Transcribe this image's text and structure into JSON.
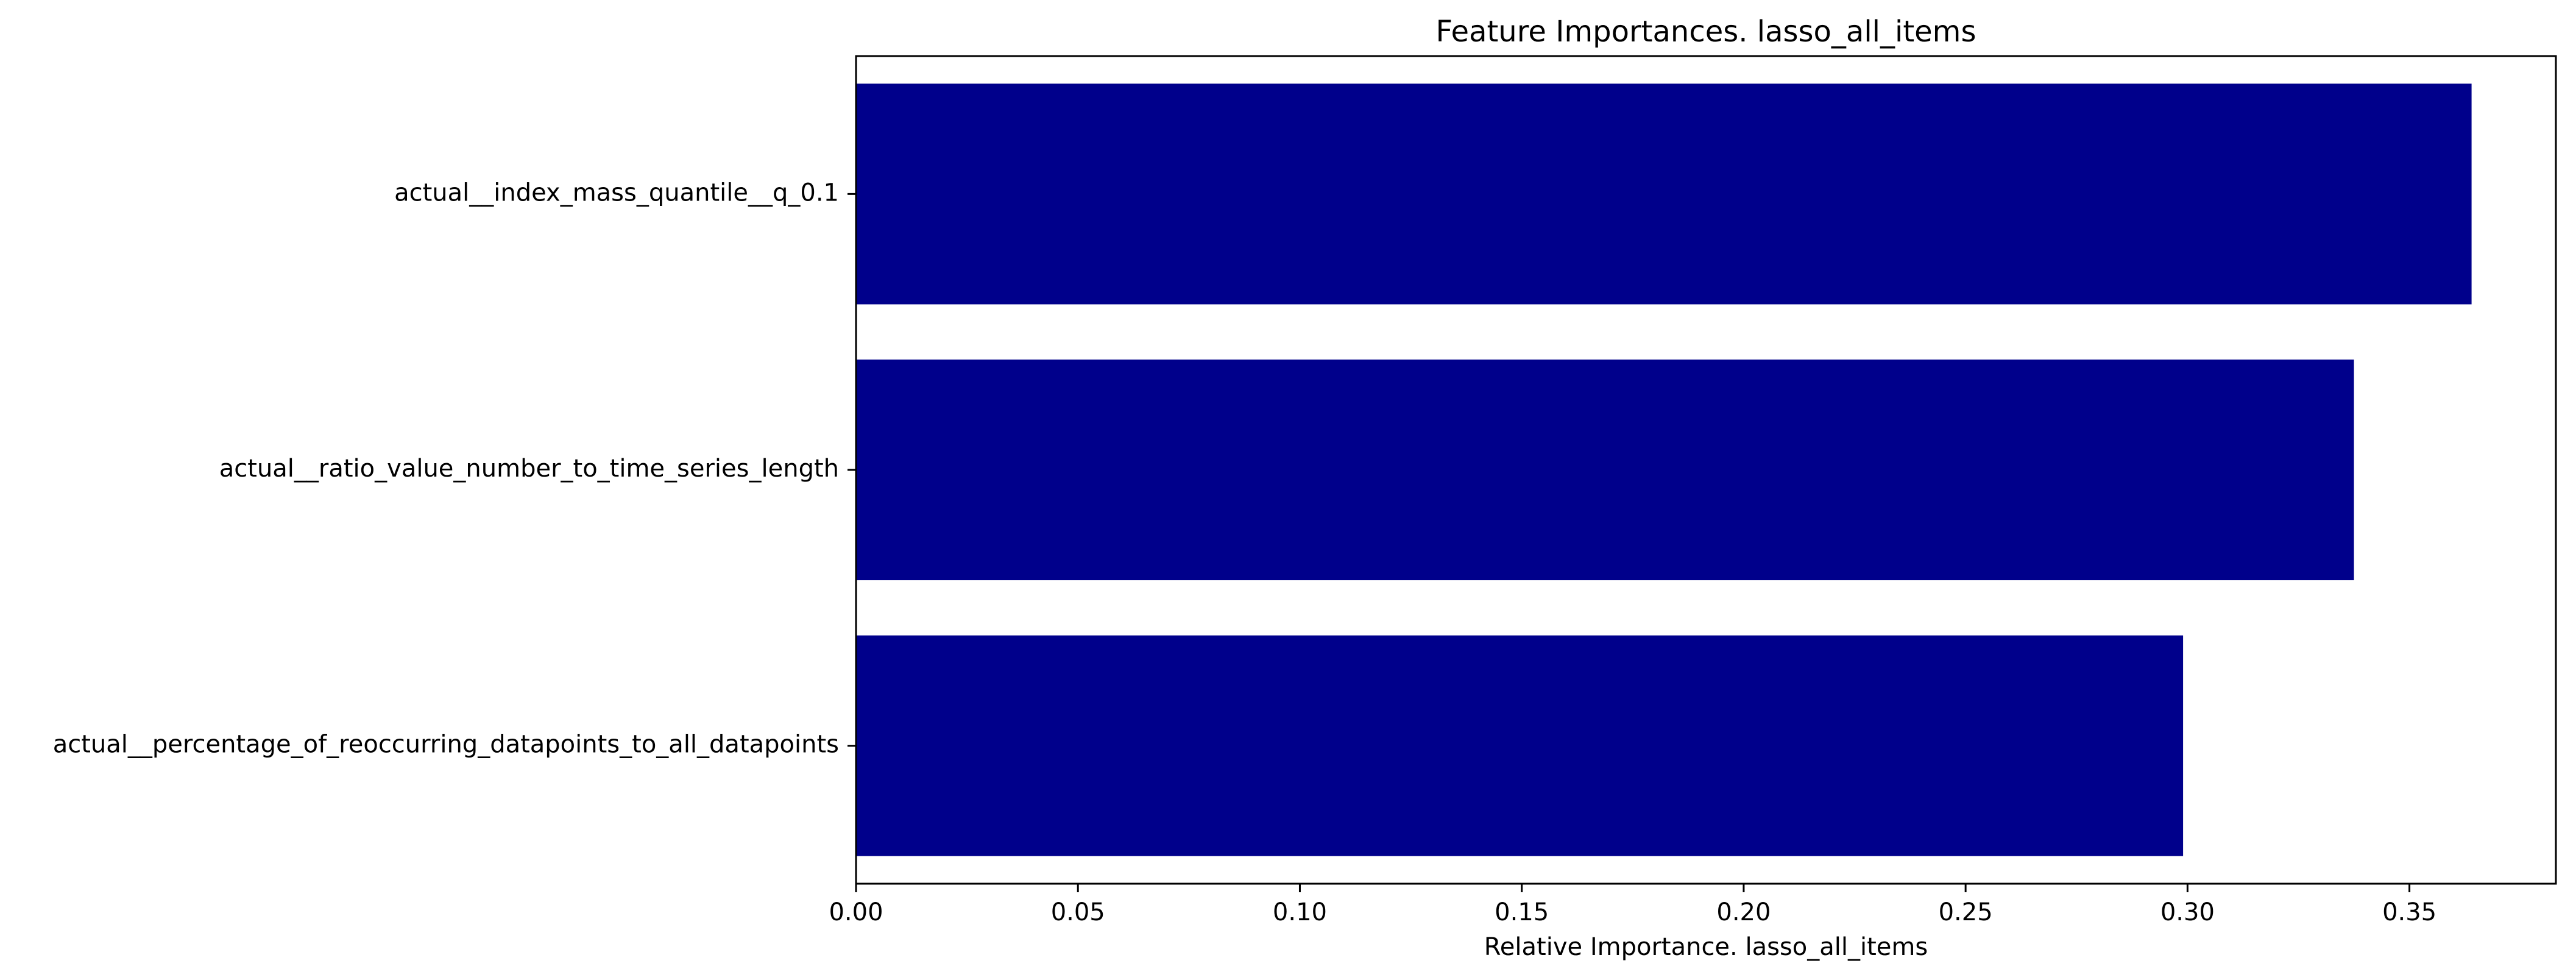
{
  "chart_data": {
    "type": "bar",
    "orientation": "horizontal",
    "title": "Feature Importances. lasso_all_items",
    "xlabel": "Relative Importance. lasso_all_items",
    "ylabel": "",
    "categories": [
      "actual__index_mass_quantile__q_0.1",
      "actual__ratio_value_number_to_time_series_length",
      "actual__percentage_of_reoccurring_datapoints_to_all_datapoints"
    ],
    "values": [
      0.364,
      0.3375,
      0.299
    ],
    "xlim": [
      0,
      0.383
    ],
    "xticks": [
      0.0,
      0.05,
      0.1,
      0.15,
      0.2,
      0.25,
      0.3,
      0.35
    ],
    "xtick_labels": [
      "0.00",
      "0.05",
      "0.10",
      "0.15",
      "0.20",
      "0.25",
      "0.30",
      "0.35"
    ],
    "grid": false,
    "bar_color": "#00008b"
  }
}
